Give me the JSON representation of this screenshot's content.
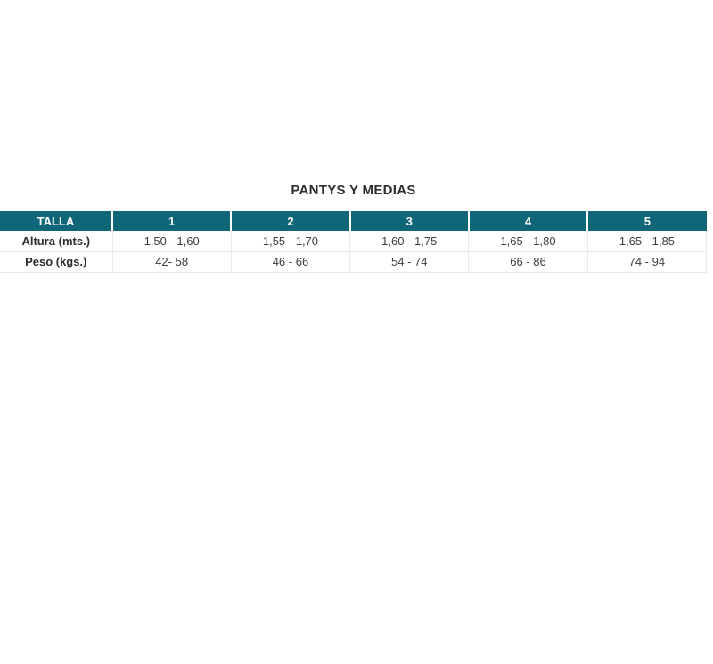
{
  "title": "PANTYS Y MEDIAS",
  "colors": {
    "header_bg": "#106679",
    "header_text": "#ffffff",
    "body_text": "#3d3d3d",
    "label_text": "#2e2e2e",
    "row_border": "#e9e9e9",
    "page_bg": "#ffffff"
  },
  "size_table": {
    "corner_header": "TALLA",
    "size_columns": [
      "1",
      "2",
      "3",
      "4",
      "5"
    ],
    "rows": [
      {
        "label": "Altura (mts.)",
        "values": [
          "1,50 - 1,60",
          "1,55 - 1,70",
          "1,60 - 1,75",
          "1,65 - 1,80",
          "1,65 - 1,85"
        ]
      },
      {
        "label": "Peso (kgs.)",
        "values": [
          "42- 58",
          "46 - 66",
          "54 - 74",
          "66 - 86",
          "74 - 94"
        ]
      }
    ]
  }
}
